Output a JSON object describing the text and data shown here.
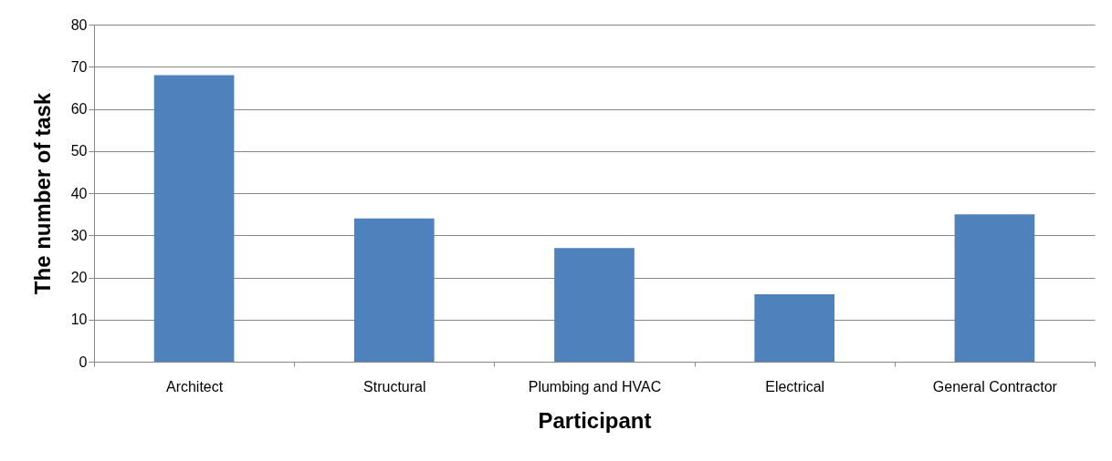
{
  "chart_data": {
    "type": "bar",
    "xlabel": "Participant",
    "ylabel": "The number of task",
    "categories": [
      "Architect",
      "Structural",
      "Plumbing and HVAC",
      "Electrical",
      "General Contractor"
    ],
    "values": [
      68,
      34,
      27,
      16,
      35
    ],
    "color": "#4f81bd",
    "ylim": [
      0,
      80
    ],
    "yticks": [
      0,
      10,
      20,
      30,
      40,
      50,
      60,
      70,
      80
    ],
    "grid": "y"
  }
}
